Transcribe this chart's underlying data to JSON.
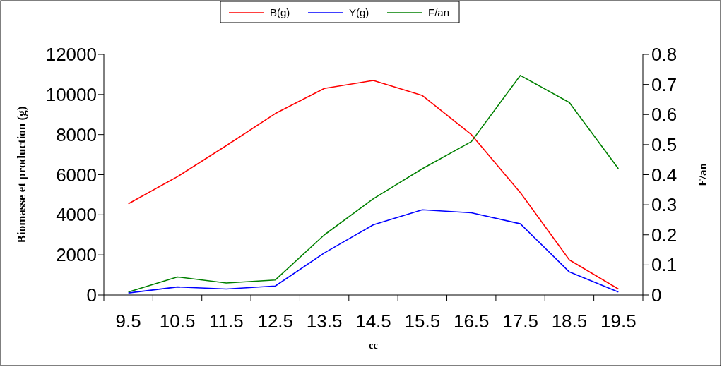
{
  "chart_data": {
    "type": "line",
    "xlabel": "cc",
    "ylabel": "Biomasse et production (g)",
    "y2label": "F/an",
    "categories": [
      "9.5",
      "10.5",
      "11.5",
      "12.5",
      "13.5",
      "14.5",
      "15.5",
      "16.5",
      "17.5",
      "18.5",
      "19.5"
    ],
    "series": [
      {
        "name": "B(g)",
        "color": "#ff0000",
        "values": [
          4550,
          5900,
          7450,
          9050,
          10300,
          10700,
          9950,
          8000,
          5100,
          1750,
          300
        ]
      },
      {
        "name": "Y(g)",
        "color": "#0000ff",
        "values": [
          100,
          400,
          300,
          450,
          2100,
          3500,
          4250,
          4100,
          3550,
          1150,
          150
        ]
      },
      {
        "name": "F/an",
        "color": "#008000",
        "axis": "y2",
        "values": [
          0.01,
          0.06,
          0.04,
          0.05,
          0.2,
          0.32,
          0.42,
          0.51,
          0.73,
          0.64,
          0.42
        ]
      }
    ],
    "ylim": [
      0,
      12000
    ],
    "yticks": [
      0,
      2000,
      4000,
      6000,
      8000,
      10000,
      12000
    ],
    "y2lim": [
      0,
      0.8
    ],
    "y2ticks": [
      0,
      0.1,
      0.2,
      0.3,
      0.4,
      0.5,
      0.6,
      0.7,
      0.8
    ],
    "legend": "top",
    "grid": false,
    "marker": "none",
    "line_style": "solid"
  }
}
